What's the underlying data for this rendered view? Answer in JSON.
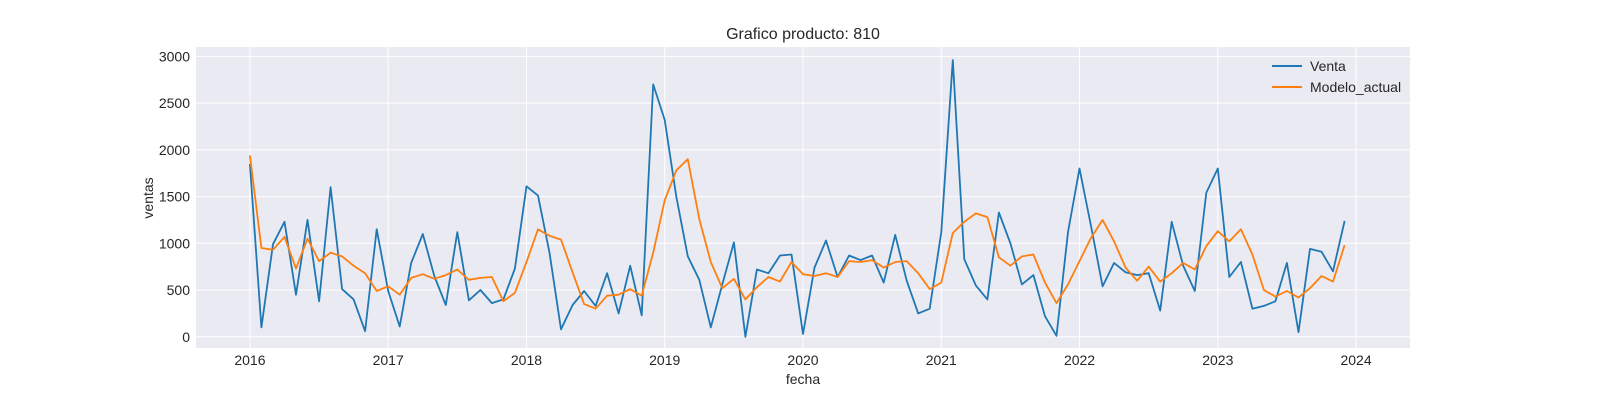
{
  "chart_data": {
    "type": "line",
    "title": "Grafico producto: 810",
    "xlabel": "fecha",
    "ylabel": "ventas",
    "x_start": "2016-01",
    "x_end": "2023-12",
    "x_frequency": "monthly",
    "xticks": [
      "2016",
      "2017",
      "2018",
      "2019",
      "2020",
      "2021",
      "2022",
      "2023",
      "2024"
    ],
    "yticks": [
      0,
      500,
      1000,
      1500,
      2000,
      2500,
      3000
    ],
    "ylim": [
      -120,
      3100
    ],
    "grid": true,
    "legend_position": "top-right",
    "background": "#eaeaf2",
    "series": [
      {
        "name": "Venta",
        "color": "#1f77b4",
        "values": [
          1850,
          100,
          990,
          1230,
          450,
          1250,
          380,
          1600,
          510,
          400,
          60,
          1150,
          490,
          110,
          790,
          1100,
          650,
          340,
          1120,
          390,
          500,
          360,
          400,
          730,
          1610,
          1510,
          900,
          80,
          340,
          490,
          330,
          680,
          250,
          760,
          230,
          2700,
          2320,
          1500,
          860,
          610,
          100,
          560,
          1010,
          0,
          720,
          680,
          870,
          880,
          30,
          740,
          1030,
          640,
          870,
          820,
          870,
          580,
          1090,
          600,
          250,
          300,
          1120,
          2960,
          830,
          550,
          400,
          1330,
          1000,
          560,
          660,
          220,
          10,
          1120,
          1800,
          1180,
          540,
          790,
          690,
          660,
          680,
          280,
          1230,
          760,
          490,
          1540,
          1800,
          640,
          800,
          300,
          330,
          380,
          790,
          50,
          940,
          910,
          700,
          1240
        ]
      },
      {
        "name": "Modelo_actual",
        "color": "#ff7f0e",
        "values": [
          1940,
          950,
          930,
          1070,
          730,
          1050,
          810,
          900,
          860,
          760,
          680,
          490,
          540,
          450,
          630,
          670,
          620,
          660,
          720,
          610,
          630,
          640,
          380,
          470,
          800,
          1150,
          1080,
          1040,
          690,
          350,
          300,
          440,
          450,
          510,
          440,
          900,
          1460,
          1780,
          1900,
          1260,
          800,
          520,
          620,
          400,
          530,
          640,
          590,
          800,
          670,
          650,
          680,
          640,
          810,
          800,
          820,
          740,
          800,
          810,
          680,
          510,
          580,
          1110,
          1230,
          1320,
          1280,
          850,
          760,
          860,
          880,
          580,
          360,
          560,
          810,
          1060,
          1250,
          1020,
          740,
          600,
          750,
          590,
          680,
          790,
          720,
          970,
          1130,
          1020,
          1150,
          880,
          500,
          430,
          490,
          420,
          520,
          650,
          590,
          980
        ]
      }
    ]
  }
}
